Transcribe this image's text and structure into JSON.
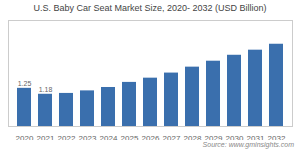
{
  "chart_data": {
    "type": "bar",
    "title": "U.S. Baby Car Seat Market Size, 2020- 2032 (USD Billion)",
    "categories": [
      "2020",
      "2021",
      "2022",
      "2023",
      "2024",
      "2025",
      "2026",
      "2027",
      "2028",
      "2029",
      "2030",
      "2031",
      "2032"
    ],
    "values": [
      1.25,
      1.18,
      1.19,
      1.22,
      1.26,
      1.32,
      1.37,
      1.43,
      1.5,
      1.57,
      1.64,
      1.7,
      1.77
    ],
    "color": "#3a6fad",
    "ylim": [
      0.8,
      2.05
    ],
    "grid": false,
    "tick_labels": "x",
    "annotations": [
      {
        "x": "2020",
        "y": 1.25,
        "text": "1.25"
      },
      {
        "x": "2021",
        "y": 1.18,
        "text": "1.18"
      }
    ],
    "caption": "Source: www.gminsights.com"
  }
}
